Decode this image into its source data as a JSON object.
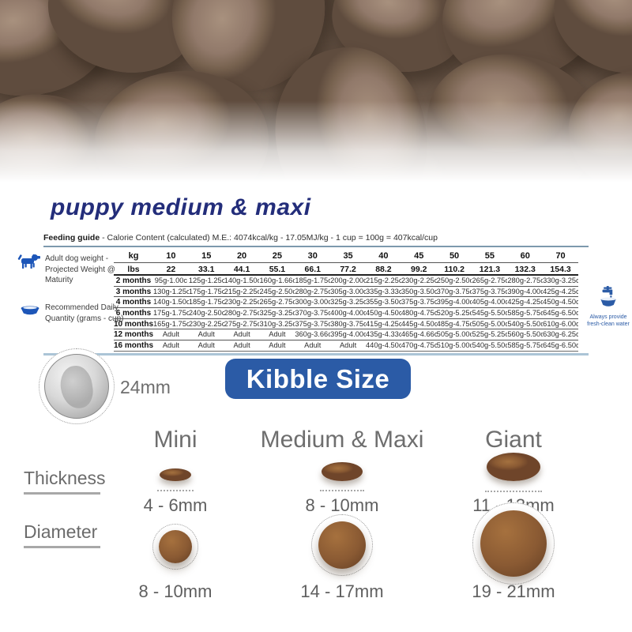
{
  "title": "puppy medium & maxi",
  "feeding_guide": {
    "heading_bold": "Feeding guide",
    "heading_rest": " - Calorie Content (calculated) M.E.: 4074kcal/kg - 17.05MJ/kg - 1 cup = 100g = 407kcal/cup",
    "weight_label": "Adult dog weight - Projected Weight @ Maturity",
    "quantity_label": "Recommended Daily Quantity (grams - cup)",
    "water_note": "Always provide fresh-clean water",
    "kg_label": "kg",
    "lbs_label": "lbs",
    "kg_values": [
      "10",
      "15",
      "20",
      "25",
      "30",
      "35",
      "40",
      "45",
      "50",
      "55",
      "60",
      "70"
    ],
    "lbs_values": [
      "22",
      "33.1",
      "44.1",
      "55.1",
      "66.1",
      "77.2",
      "88.2",
      "99.2",
      "110.2",
      "121.3",
      "132.3",
      "154.3"
    ],
    "rows": [
      {
        "label": "2 months",
        "values": [
          "95g-1.00c",
          "125g-1.25c",
          "140g-1.50c",
          "160g-1.66c",
          "185g-1.75c",
          "200g-2.00c",
          "215g-2.25c",
          "230g-2.25c",
          "250g-2.50c",
          "265g-2.75c",
          "280g-2.75c",
          "330g-3.25c"
        ]
      },
      {
        "label": "3 months",
        "values": [
          "130g-1.25c",
          "175g-1.75c",
          "215g-2.25c",
          "245g-2.50c",
          "280g-2.75c",
          "305g-3.00c",
          "335g-3.33c",
          "350g-3.50c",
          "370g-3.75c",
          "375g-3.75c",
          "390g-4.00c",
          "425g-4.25c"
        ]
      },
      {
        "label": "4 months",
        "values": [
          "140g-1.50c",
          "185g-1.75c",
          "230g-2.25c",
          "265g-2.75c",
          "300g-3.00c",
          "325g-3.25c",
          "355g-3.50c",
          "375g-3.75c",
          "395g-4.00c",
          "405g-4.00c",
          "425g-4.25c",
          "450g-4.50c"
        ]
      },
      {
        "label": "6 months",
        "values": [
          "175g-1.75c",
          "240g-2.50c",
          "280g-2.75c",
          "325g-3.25c",
          "370g-3.75c",
          "400g-4.00c",
          "450g-4.50c",
          "480g-4.75c",
          "520g-5.25c",
          "545g-5.50c",
          "585g-5.75c",
          "645g-6.50c"
        ]
      },
      {
        "label": "10 months",
        "values": [
          "165g-1.75c",
          "230g-2.25c",
          "275g-2.75c",
          "310g-3.25c",
          "375g-3.75c",
          "380g-3.75c",
          "415g-4.25c",
          "445g-4.50c",
          "485g-4.75c",
          "505g-5.00c",
          "540g-5.50c",
          "610g-6.00c"
        ]
      },
      {
        "label": "12 months",
        "values": [
          "Adult",
          "Adult",
          "Adult",
          "Adult",
          "360g-3.66c",
          "395g-4.00c",
          "435g-4.33c",
          "465g-4.66c",
          "505g-5.00c",
          "525g-5.25c",
          "560g-5.50c",
          "630g-6.25c"
        ]
      },
      {
        "label": "16 months",
        "values": [
          "Adult",
          "Adult",
          "Adult",
          "Adult",
          "Adult",
          "Adult",
          "440g-4.50c",
          "470g-4.75c",
          "510g-5.00c",
          "540g-5.50c",
          "585g-5.75c",
          "645g-6.50c"
        ]
      }
    ]
  },
  "kibble_size": {
    "coin_label": "24mm",
    "button_label": "Kibble Size",
    "columns": [
      "Mini",
      "Medium & Maxi",
      "Giant"
    ],
    "thickness_label": "Thickness",
    "diameter_label": "Diameter",
    "thickness_values": [
      "4 - 6mm",
      "8 - 10mm",
      "11 - 13mm"
    ],
    "diameter_values": [
      "8 - 10mm",
      "14 - 17mm",
      "19 - 21mm"
    ]
  },
  "icons": {
    "dog": "dog-silhouette-icon",
    "bowl": "food-bowl-icon",
    "tap": "water-tap-icon"
  },
  "colors": {
    "navy_title": "#232d7a",
    "accent_blue": "#2b5ba6",
    "icon_blue": "#1d56b8",
    "steel_line": "#7d99ad",
    "light_blue_line": "#abc4d6",
    "gray_text": "#6e6e6e",
    "kibble_brown": "#8a5a33"
  }
}
